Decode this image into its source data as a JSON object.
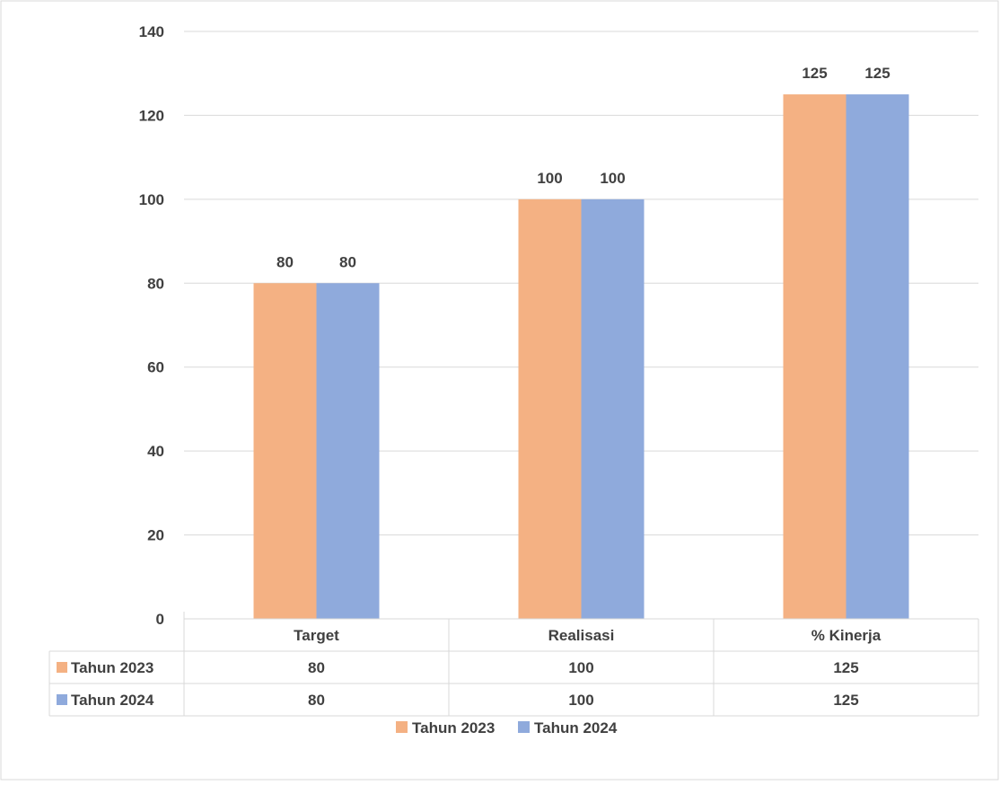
{
  "chart_data": {
    "type": "bar",
    "categories": [
      "Target",
      "Realisasi",
      "% Kinerja"
    ],
    "series": [
      {
        "name": "Tahun 2023",
        "values": [
          80,
          100,
          125
        ],
        "color": "#F4B183"
      },
      {
        "name": "Tahun 2024",
        "values": [
          80,
          100,
          125
        ],
        "color": "#8FAADC"
      }
    ],
    "ylim": [
      0,
      140
    ],
    "yticks": [
      0,
      20,
      40,
      60,
      80,
      100,
      120,
      140
    ],
    "grid": true,
    "data_table": true,
    "legend_position": "bottom",
    "title": "",
    "xlabel": "",
    "ylabel": ""
  }
}
